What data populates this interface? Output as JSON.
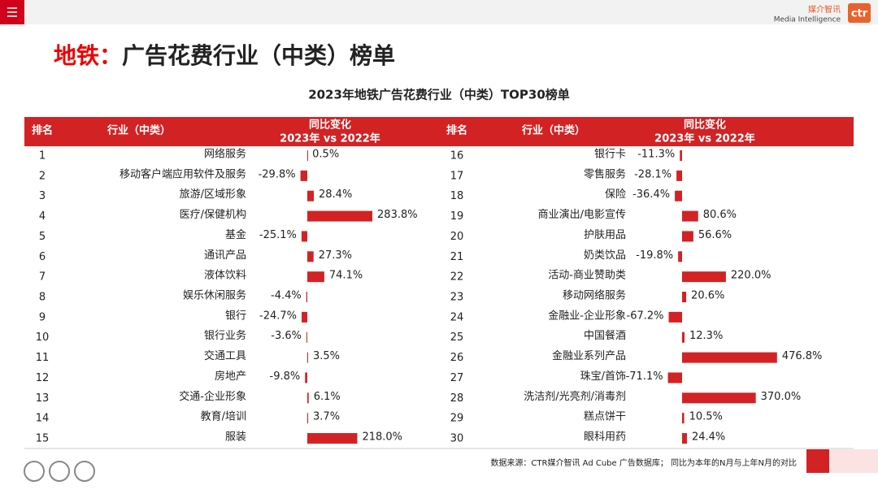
{
  "logo": {
    "cn": "媒介智讯",
    "en": "Media Intelligence",
    "mark": "ctr"
  },
  "title": {
    "prefix": "地铁：",
    "main": "广告花费行业（中类）榜单"
  },
  "subtitle": "2023年地铁广告花费行业（中类）TOP30榜单",
  "header": {
    "rank": "排名",
    "industry": "行业（中类）",
    "change": "同比变化",
    "period": "2023年 vs 2022年"
  },
  "tables": [
    {
      "rows": [
        {
          "rank": 1,
          "industry": "网络服务",
          "value": 0.5,
          "label": "0.5%"
        },
        {
          "rank": 2,
          "industry": "移动客户端应用软件及服务",
          "value": -29.8,
          "label": "-29.8%"
        },
        {
          "rank": 3,
          "industry": "旅游/区域形象",
          "value": 28.4,
          "label": "28.4%"
        },
        {
          "rank": 4,
          "industry": "医疗/保健机构",
          "value": 283.8,
          "label": "283.8%"
        },
        {
          "rank": 5,
          "industry": "基金",
          "value": -25.1,
          "label": "-25.1%"
        },
        {
          "rank": 6,
          "industry": "通讯产品",
          "value": 27.3,
          "label": "27.3%"
        },
        {
          "rank": 7,
          "industry": "液体饮料",
          "value": 74.1,
          "label": "74.1%"
        },
        {
          "rank": 8,
          "industry": "娱乐休闲服务",
          "value": -4.4,
          "label": "-4.4%"
        },
        {
          "rank": 9,
          "industry": "银行",
          "value": -24.7,
          "label": "-24.7%"
        },
        {
          "rank": 10,
          "industry": "银行业务",
          "value": -3.6,
          "label": "-3.6%"
        },
        {
          "rank": 11,
          "industry": "交通工具",
          "value": 3.5,
          "label": "3.5%"
        },
        {
          "rank": 12,
          "industry": "房地产",
          "value": -9.8,
          "label": "-9.8%"
        },
        {
          "rank": 13,
          "industry": "交通-企业形象",
          "value": 6.1,
          "label": "6.1%"
        },
        {
          "rank": 14,
          "industry": "教育/培训",
          "value": 3.7,
          "label": "3.7%"
        },
        {
          "rank": 15,
          "industry": "服装",
          "value": 218.0,
          "label": "218.0%"
        }
      ]
    },
    {
      "rows": [
        {
          "rank": 16,
          "industry": "银行卡",
          "value": -11.3,
          "label": "-11.3%"
        },
        {
          "rank": 17,
          "industry": "零售服务",
          "value": -28.1,
          "label": "-28.1%"
        },
        {
          "rank": 18,
          "industry": "保险",
          "value": -36.4,
          "label": "-36.4%"
        },
        {
          "rank": 19,
          "industry": "商业演出/电影宣传",
          "value": 80.6,
          "label": "80.6%"
        },
        {
          "rank": 20,
          "industry": "护肤用品",
          "value": 56.6,
          "label": "56.6%"
        },
        {
          "rank": 21,
          "industry": "奶类饮品",
          "value": -19.8,
          "label": "-19.8%"
        },
        {
          "rank": 22,
          "industry": "活动-商业赞助类",
          "value": 220.0,
          "label": "220.0%"
        },
        {
          "rank": 23,
          "industry": "移动网络服务",
          "value": 20.6,
          "label": "20.6%"
        },
        {
          "rank": 24,
          "industry": "金融业-企业形象",
          "value": -67.2,
          "label": "-67.2%"
        },
        {
          "rank": 25,
          "industry": "中国餐酒",
          "value": 12.3,
          "label": "12.3%"
        },
        {
          "rank": 26,
          "industry": "金融业系列产品",
          "value": 476.8,
          "label": "476.8%"
        },
        {
          "rank": 27,
          "industry": "珠宝/首饰",
          "value": -71.1,
          "label": "-71.1%"
        },
        {
          "rank": 28,
          "industry": "洗洁剂/光亮剂/消毒剂",
          "value": 370.0,
          "label": "370.0%"
        },
        {
          "rank": 29,
          "industry": "糕点饼干",
          "value": 10.5,
          "label": "10.5%"
        },
        {
          "rank": 30,
          "industry": "眼科用药",
          "value": 24.4,
          "label": "24.4%"
        }
      ]
    }
  ],
  "source": "数据来源：CTR媒介智讯 Ad Cube 广告数据库； 同比为本年的N月与上年N月的对比"
}
